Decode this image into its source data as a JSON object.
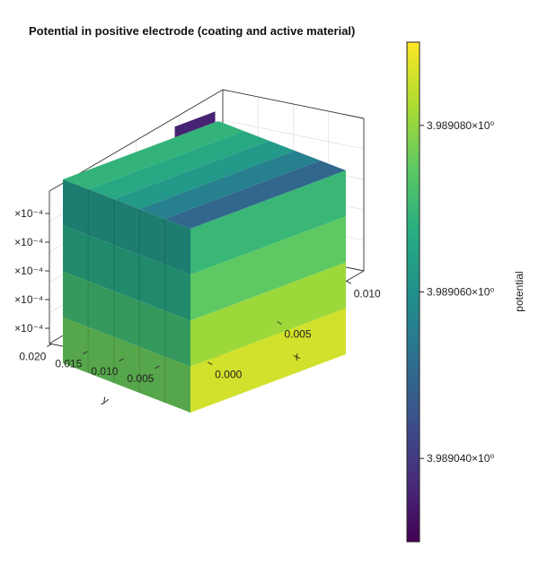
{
  "chart_data": {
    "type": "3d-surface",
    "title": "Potential in positive electrode (coating and active material)",
    "x_axis": {
      "label": "x",
      "ticks": [
        "0.000",
        "0.005",
        "0.010"
      ]
    },
    "y_axis": {
      "label": "y",
      "ticks": [
        "0.005",
        "0.010",
        "0.015",
        "0.020"
      ]
    },
    "z_axis": {
      "label": "",
      "ticks": [
        "×10⁻⁴",
        "×10⁻⁴",
        "×10⁻⁴",
        "×10⁻⁴",
        "×10⁻⁴"
      ]
    },
    "colorbar": {
      "label": "potential",
      "colormap": "viridis",
      "range": [
        3.98903,
        3.98909
      ],
      "ticks": [
        {
          "value": 3.98904,
          "label": "3.989040×10⁰"
        },
        {
          "value": 3.98906,
          "label": "3.989060×10⁰"
        },
        {
          "value": 3.98908,
          "label": "3.989080×10⁰"
        }
      ]
    },
    "surface_values": {
      "top_rows": [
        3.98905,
        3.989056,
        3.989062,
        3.989066,
        3.989069
      ],
      "front_right_layers": [
        3.98907,
        3.989075,
        3.989081,
        3.989086
      ],
      "front_left_layers": [
        3.989062,
        3.989066,
        3.989071,
        3.989076
      ],
      "tab": 3.989036
    }
  }
}
